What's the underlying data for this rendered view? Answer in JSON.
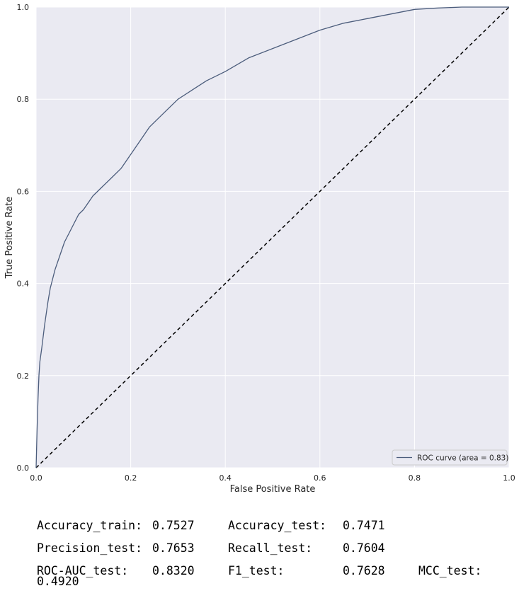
{
  "chart_data": {
    "type": "line",
    "title": "",
    "xlabel": "False Positive Rate",
    "ylabel": "True Positive Rate",
    "xlim": [
      0.0,
      1.0
    ],
    "ylim": [
      0.0,
      1.0
    ],
    "xticks": [
      "0.0",
      "0.2",
      "0.4",
      "0.6",
      "0.8",
      "1.0"
    ],
    "yticks": [
      "0.0",
      "0.2",
      "0.4",
      "0.6",
      "0.8",
      "1.0"
    ],
    "grid": true,
    "legend_position": "lower-right",
    "series": [
      {
        "name": "ROC curve (area = 0.83)",
        "color": "#4c5d7c",
        "style": "solid",
        "x": [
          0.0,
          0.002,
          0.004,
          0.006,
          0.008,
          0.012,
          0.018,
          0.025,
          0.03,
          0.04,
          0.05,
          0.06,
          0.07,
          0.08,
          0.09,
          0.1,
          0.12,
          0.14,
          0.16,
          0.18,
          0.2,
          0.22,
          0.24,
          0.26,
          0.28,
          0.3,
          0.33,
          0.36,
          0.4,
          0.45,
          0.5,
          0.55,
          0.6,
          0.65,
          0.7,
          0.75,
          0.8,
          0.85,
          0.9,
          0.95,
          1.0
        ],
        "y": [
          0.0,
          0.08,
          0.15,
          0.2,
          0.23,
          0.26,
          0.31,
          0.36,
          0.39,
          0.43,
          0.46,
          0.49,
          0.51,
          0.53,
          0.55,
          0.56,
          0.59,
          0.61,
          0.63,
          0.65,
          0.68,
          0.71,
          0.74,
          0.76,
          0.78,
          0.8,
          0.82,
          0.84,
          0.86,
          0.89,
          0.91,
          0.93,
          0.95,
          0.965,
          0.975,
          0.985,
          0.995,
          0.998,
          1.0,
          1.0,
          1.0
        ]
      },
      {
        "name": "",
        "color": "#000000",
        "style": "dashed",
        "x": [
          0.0,
          1.0
        ],
        "y": [
          0.0,
          1.0
        ]
      }
    ],
    "legend": [
      {
        "label": "ROC curve (area = 0.83)",
        "color": "#4c5d7c"
      }
    ],
    "background_color": "#eaeaf2",
    "grid_color": "#ffffff"
  },
  "metrics": {
    "row1": [
      {
        "label": "Accuracy_train:",
        "value": "0.7527"
      },
      {
        "label": "Accuracy_test:",
        "value": "0.7471"
      }
    ],
    "row2": [
      {
        "label": "Precision_test:",
        "value": "0.7653"
      },
      {
        "label": "Recall_test:",
        "value": "0.7604"
      }
    ],
    "row3": [
      {
        "label": "ROC-AUC_test:",
        "value": "0.8320"
      },
      {
        "label": "F1_test:",
        "value": "0.7628"
      },
      {
        "label": "MCC_test:",
        "value": "0.4920"
      }
    ]
  }
}
